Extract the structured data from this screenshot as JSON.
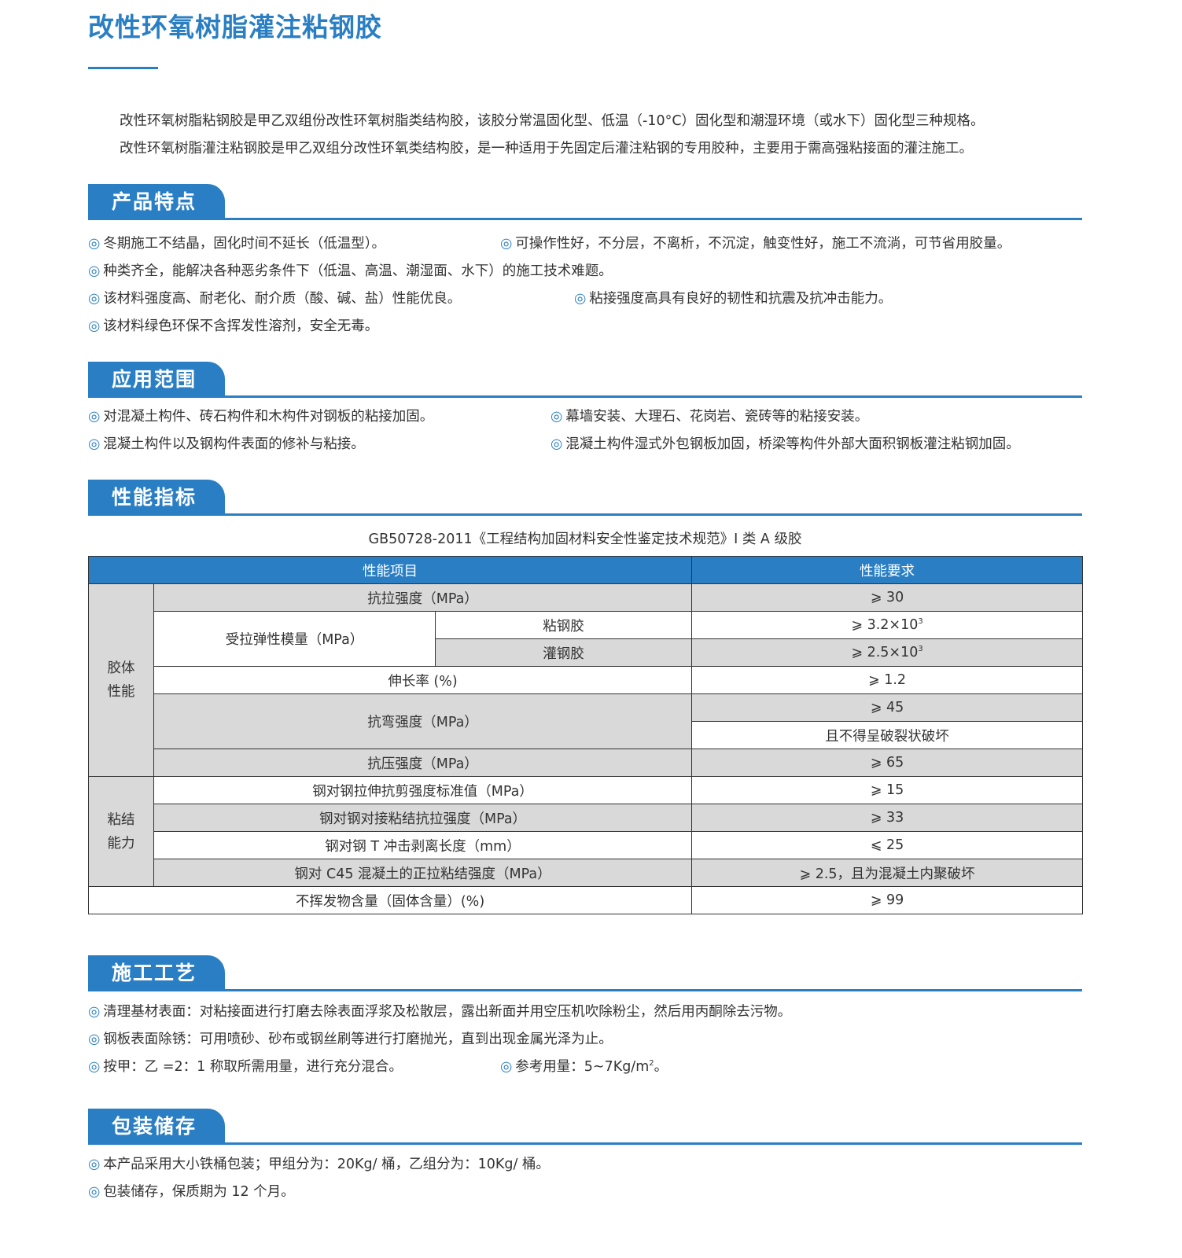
{
  "title": "改性环氧树脂灌注粘钢胶",
  "intro": [
    "改性环氧树脂粘钢胶是甲乙双组份改性环氧树脂类结构胶，该胶分常温固化型、低温（-10°C）固化型和潮湿环境（或水下）固化型三种规格。",
    "改性环氧树脂灌注粘钢胶是甲乙双组分改性环氧类结构胶，是一种适用于先固定后灌注粘钢的专用胶种，主要用于需高强粘接面的灌注施工。"
  ],
  "bullet": "◎",
  "sections": {
    "features": {
      "title": "产品特点",
      "items": [
        "冬期施工不结晶，固化时间不延长（低温型）。",
        "可操作性好，不分层，不离析，不沉淀，触变性好，施工不流淌，可节省用胶量。",
        "种类齐全，能解决各种恶劣条件下（低温、高温、潮湿面、水下）的施工技术难题。",
        "该材料强度高、耐老化、耐介质（酸、碱、盐）性能优良。",
        "粘接强度高具有良好的韧性和抗震及抗冲击能力。",
        "该材料绿色环保不含挥发性溶剂，安全无毒。"
      ]
    },
    "application": {
      "title": "应用范围",
      "items": [
        "对混凝土构件、砖石构件和木构件对钢板的粘接加固。",
        "幕墙安装、大理石、花岗岩、瓷砖等的粘接安装。",
        "混凝土构件以及钢构件表面的修补与粘接。",
        "混凝土构件湿式外包钢板加固，桥梁等构件外部大面积钢板灌注粘钢加固。"
      ]
    },
    "performance": {
      "title": "性能指标",
      "caption": "GB50728-2011《工程结构加固材料安全性鉴定技术规范》I 类 A 级胶"
    },
    "construction": {
      "title": "施工工艺",
      "items": [
        "清理基材表面：对粘接面进行打磨去除表面浮浆及松散层，露出新面并用空压机吹除粉尘，然后用丙酮除去污物。",
        "钢板表面除锈：可用喷砂、砂布或钢丝刷等进行打磨抛光，直到出现金属光泽为止。",
        "按甲：乙 =2：1 称取所需用量，进行充分混合。",
        "参考用量：5~7Kg/m"
      ],
      "sup": "2",
      "tail": "。"
    },
    "packaging": {
      "title": "包装储存",
      "items": [
        "本产品采用大小铁桶包装；甲组分为：20Kg/ 桶，乙组分为：10Kg/ 桶。",
        "包装储存，保质期为 12 个月。"
      ]
    }
  },
  "table": {
    "headers": [
      "性能项目",
      "性能要求"
    ],
    "group1": "胶体\n性能",
    "group2": "粘结\n能力",
    "r1": [
      "抗拉强度（MPa）",
      "⩾ 30"
    ],
    "modulus": "受拉弹性模量（MPa）",
    "r2": [
      "粘钢胶",
      "⩾ 3.2×10",
      "3"
    ],
    "r3": [
      "灌钢胶",
      "⩾ 2.5×10",
      "3"
    ],
    "r4": [
      "伸长率 (%)",
      "⩾ 1.2"
    ],
    "r5": [
      "抗弯强度（MPa）",
      "⩾ 45",
      "且不得呈破裂状破坏"
    ],
    "r7": [
      "抗压强度（MPa）",
      "⩾ 65"
    ],
    "r8": [
      "钢对钢拉伸抗剪强度标准值（MPa）",
      "⩾ 15"
    ],
    "r9": [
      "钢对钢对接粘结抗拉强度（MPa）",
      "⩾ 33"
    ],
    "r10": [
      "钢对钢 T 冲击剥离长度（mm）",
      "⩽ 25"
    ],
    "r11": [
      "钢对 C45 混凝土的正拉粘结强度（MPa）",
      "⩾ 2.5，且为混凝土内聚破坏"
    ],
    "r12": [
      "不挥发物含量（固体含量）(%)",
      "⩾ 99"
    ]
  },
  "colors": {
    "accent": "#2a7fc4",
    "row_shade": "#d9d9d9"
  }
}
